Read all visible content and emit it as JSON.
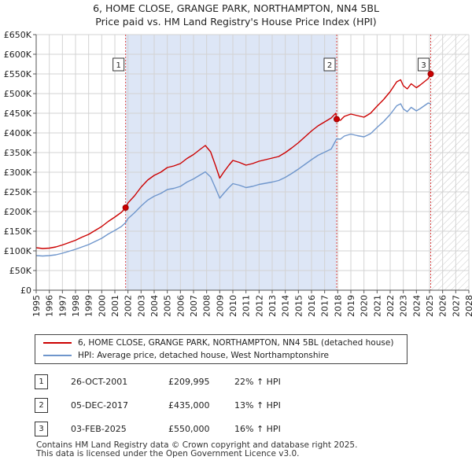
{
  "title_line1": "6, HOME CLOSE, GRANGE PARK, NORTHAMPTON, NN4 5BL",
  "title_line2": "Price paid vs. HM Land Registry's House Price Index (HPI)",
  "colors": {
    "property": "#cc0000",
    "hpi": "#6f96cc",
    "shade": "#dde6f6",
    "grid": "#d3d3d3"
  },
  "chart_data": {
    "type": "line",
    "xlabel": "",
    "ylabel": "",
    "xlim": [
      1995,
      2028
    ],
    "ylim": [
      0,
      650000
    ],
    "y_ticks": [
      0,
      50000,
      100000,
      150000,
      200000,
      250000,
      300000,
      350000,
      400000,
      450000,
      500000,
      550000,
      600000,
      650000
    ],
    "y_tick_labels": [
      "£0",
      "£50K",
      "£100K",
      "£150K",
      "£200K",
      "£250K",
      "£300K",
      "£350K",
      "£400K",
      "£450K",
      "£500K",
      "£550K",
      "£600K",
      "£650K"
    ],
    "x_ticks": [
      1995,
      1996,
      1997,
      1998,
      1999,
      2000,
      2001,
      2002,
      2003,
      2004,
      2005,
      2006,
      2007,
      2008,
      2009,
      2010,
      2011,
      2012,
      2013,
      2014,
      2015,
      2016,
      2017,
      2018,
      2019,
      2020,
      2021,
      2022,
      2023,
      2024,
      2025,
      2026,
      2027,
      2028
    ],
    "x_tick_labels": [
      "1995",
      "1996",
      "1997",
      "1998",
      "1999",
      "2000",
      "2001",
      "2002",
      "2003",
      "2004",
      "2005",
      "2006",
      "2007",
      "2008",
      "2009",
      "2010",
      "2011",
      "2012",
      "2013",
      "2014",
      "2015",
      "2016",
      "2017",
      "2018",
      "2019",
      "2020",
      "2021",
      "2022",
      "2023",
      "2024",
      "2025",
      "2026",
      "2027",
      "2028"
    ],
    "grid": true,
    "shaded_range": [
      2001.82,
      2017.92
    ],
    "hatched_from": 2025.09,
    "series": [
      {
        "name": "6, HOME CLOSE, GRANGE PARK, NORTHAMPTON, NN4 5BL (detached house)",
        "color": "#cc0000",
        "x": [
          1995.0,
          1995.5,
          1996.0,
          1996.5,
          1997.0,
          1997.5,
          1998.0,
          1998.5,
          1999.0,
          1999.5,
          2000.0,
          2000.5,
          2001.0,
          2001.5,
          2001.82,
          2002.0,
          2002.5,
          2003.0,
          2003.5,
          2004.0,
          2004.5,
          2005.0,
          2005.5,
          2006.0,
          2006.5,
          2007.0,
          2007.5,
          2007.9,
          2008.3,
          2008.7,
          2009.0,
          2009.3,
          2009.7,
          2010.0,
          2010.5,
          2011.0,
          2011.5,
          2012.0,
          2012.5,
          2013.0,
          2013.5,
          2014.0,
          2014.5,
          2015.0,
          2015.5,
          2016.0,
          2016.5,
          2017.0,
          2017.5,
          2017.85,
          2017.92,
          2018.2,
          2018.5,
          2019.0,
          2019.5,
          2020.0,
          2020.5,
          2021.0,
          2021.5,
          2022.0,
          2022.5,
          2022.8,
          2023.0,
          2023.3,
          2023.6,
          2024.0,
          2024.3,
          2024.6,
          2024.9,
          2025.09
        ],
        "values": [
          108000,
          106000,
          107000,
          110000,
          115000,
          121000,
          127000,
          135000,
          142000,
          152000,
          162000,
          175000,
          186000,
          198000,
          209995,
          222000,
          240000,
          262000,
          280000,
          292000,
          300000,
          312000,
          316000,
          322000,
          335000,
          345000,
          358000,
          368000,
          352000,
          315000,
          285000,
          300000,
          318000,
          330000,
          325000,
          318000,
          322000,
          328000,
          332000,
          336000,
          340000,
          350000,
          362000,
          375000,
          390000,
          405000,
          418000,
          428000,
          438000,
          450000,
          435000,
          432000,
          442000,
          448000,
          444000,
          440000,
          450000,
          468000,
          485000,
          505000,
          530000,
          535000,
          520000,
          512000,
          525000,
          515000,
          522000,
          530000,
          538000,
          550000
        ]
      },
      {
        "name": "HPI: Average price, detached house, West Northamptonshire",
        "color": "#6f96cc",
        "x": [
          1995.0,
          1995.5,
          1996.0,
          1996.5,
          1997.0,
          1997.5,
          1998.0,
          1998.5,
          1999.0,
          1999.5,
          2000.0,
          2000.5,
          2001.0,
          2001.5,
          2001.82,
          2002.0,
          2002.5,
          2003.0,
          2003.5,
          2004.0,
          2004.5,
          2005.0,
          2005.5,
          2006.0,
          2006.5,
          2007.0,
          2007.5,
          2007.9,
          2008.3,
          2008.7,
          2009.0,
          2009.3,
          2009.7,
          2010.0,
          2010.5,
          2011.0,
          2011.5,
          2012.0,
          2012.5,
          2013.0,
          2013.5,
          2014.0,
          2014.5,
          2015.0,
          2015.5,
          2016.0,
          2016.5,
          2017.0,
          2017.5,
          2017.92,
          2018.2,
          2018.5,
          2019.0,
          2019.5,
          2020.0,
          2020.5,
          2021.0,
          2021.5,
          2022.0,
          2022.5,
          2022.8,
          2023.0,
          2023.3,
          2023.6,
          2024.0,
          2024.3,
          2024.6,
          2024.9,
          2025.09
        ],
        "values": [
          88000,
          87000,
          88000,
          90000,
          94000,
          99000,
          104000,
          110000,
          116000,
          124000,
          132000,
          143000,
          152000,
          162000,
          172000,
          182000,
          197000,
          214000,
          229000,
          239000,
          246000,
          256000,
          259000,
          264000,
          275000,
          283000,
          293000,
          301000,
          288000,
          258000,
          234000,
          246000,
          261000,
          271000,
          267000,
          261000,
          264000,
          269000,
          272000,
          275000,
          279000,
          287000,
          297000,
          308000,
          320000,
          332000,
          343000,
          351000,
          359000,
          385000,
          384000,
          392000,
          397000,
          393000,
          390000,
          398000,
          414000,
          429000,
          447000,
          469000,
          474000,
          461000,
          454000,
          465000,
          456000,
          462000,
          469000,
          476000,
          474000
        ]
      }
    ],
    "sale_markers": [
      {
        "label": "1",
        "x": 2001.82,
        "value": 209995
      },
      {
        "label": "2",
        "x": 2017.92,
        "value": 435000
      },
      {
        "label": "3",
        "x": 2025.09,
        "value": 550000
      }
    ]
  },
  "legend": {
    "property_label": "6, HOME CLOSE, GRANGE PARK, NORTHAMPTON, NN4 5BL (detached house)",
    "hpi_label": "HPI: Average price, detached house, West Northamptonshire"
  },
  "sales": [
    {
      "num": "1",
      "date": "26-OCT-2001",
      "price": "£209,995",
      "hpi": "22% ↑ HPI"
    },
    {
      "num": "2",
      "date": "05-DEC-2017",
      "price": "£435,000",
      "hpi": "13% ↑ HPI"
    },
    {
      "num": "3",
      "date": "03-FEB-2025",
      "price": "£550,000",
      "hpi": "16% ↑ HPI"
    }
  ],
  "footer": {
    "line1": "Contains HM Land Registry data © Crown copyright and database right 2025.",
    "line2": "This data is licensed under the Open Government Licence v3.0."
  }
}
